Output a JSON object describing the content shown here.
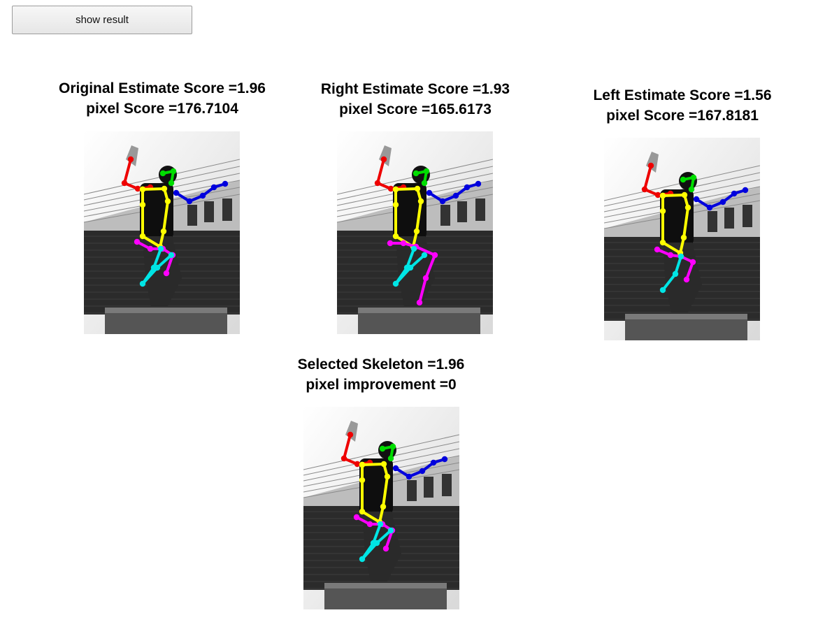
{
  "button": {
    "label": "show result"
  },
  "panels": [
    {
      "id": "original",
      "title": "Original Estimate Score =1.96",
      "subtitle": "pixel Score =176.7104"
    },
    {
      "id": "right",
      "title": "Right Estimate Score =1.93",
      "subtitle": "pixel Score =165.6173"
    },
    {
      "id": "left",
      "title": "Left Estimate Score =1.56",
      "subtitle": "pixel Score =167.8181"
    },
    {
      "id": "selected",
      "title": "Selected Skeleton =1.96",
      "subtitle": "pixel improvement =0"
    }
  ],
  "limb_colors": {
    "head": "#00dd00",
    "right_arm": "#ee0000",
    "left_arm": "#0000dd",
    "torso": "#ffff00",
    "leg_a": "#ff00ff",
    "leg_b": "#00e5e5"
  }
}
